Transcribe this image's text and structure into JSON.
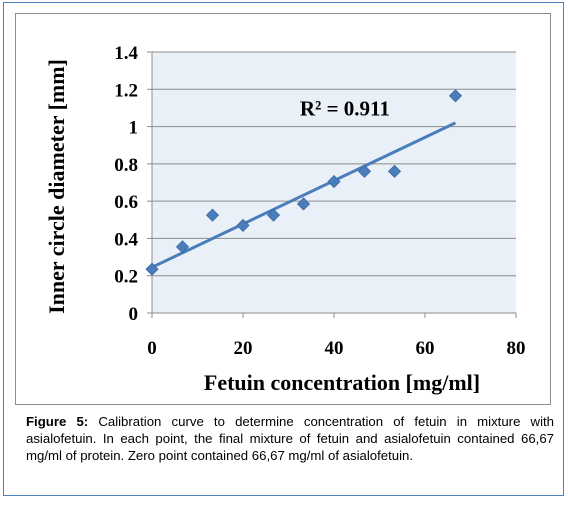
{
  "chart_data": {
    "type": "scatter",
    "xlabel": "Fetuin concentration [mg/ml]",
    "ylabel": "Inner circle diameter [mm]",
    "xlim": [
      0,
      80
    ],
    "ylim": [
      0,
      1.4
    ],
    "xticks": [
      0,
      20,
      40,
      60,
      80
    ],
    "yticks": [
      0,
      0.2,
      0.4,
      0.6,
      0.8,
      1,
      1.2,
      1.4
    ],
    "xtick_labels": [
      "0",
      "20",
      "40",
      "60",
      "80"
    ],
    "ytick_labels": [
      "0",
      "0.2",
      "0.4",
      "0.6",
      "0.8",
      "1",
      "1.2",
      "1.4"
    ],
    "grid": true,
    "marker_color": "#4a7ebb",
    "trendline_color": "#4a7ebb",
    "plot_background": "#eaf0f8",
    "points": [
      {
        "x": 0,
        "y": 0.235
      },
      {
        "x": 6.7,
        "y": 0.355
      },
      {
        "x": 13.3,
        "y": 0.525
      },
      {
        "x": 20,
        "y": 0.47
      },
      {
        "x": 26.7,
        "y": 0.525
      },
      {
        "x": 33.3,
        "y": 0.585
      },
      {
        "x": 40,
        "y": 0.705
      },
      {
        "x": 46.7,
        "y": 0.76
      },
      {
        "x": 53.3,
        "y": 0.76
      },
      {
        "x": 66.7,
        "y": 1.165
      }
    ],
    "trendline": {
      "type": "linear",
      "x": [
        0,
        66.7
      ],
      "y": [
        0.245,
        1.02
      ]
    },
    "annotation": "R² = 0.911"
  },
  "caption": {
    "label": "Figure 5:",
    "text": " Calibration curve to determine concentration of fetuin in mixture with asialofetuin. In each point, the final mixture of fetuin and asialofetuin contained 66,67 mg/ml of protein. Zero point contained 66,67 mg/ml of asialofetuin."
  }
}
